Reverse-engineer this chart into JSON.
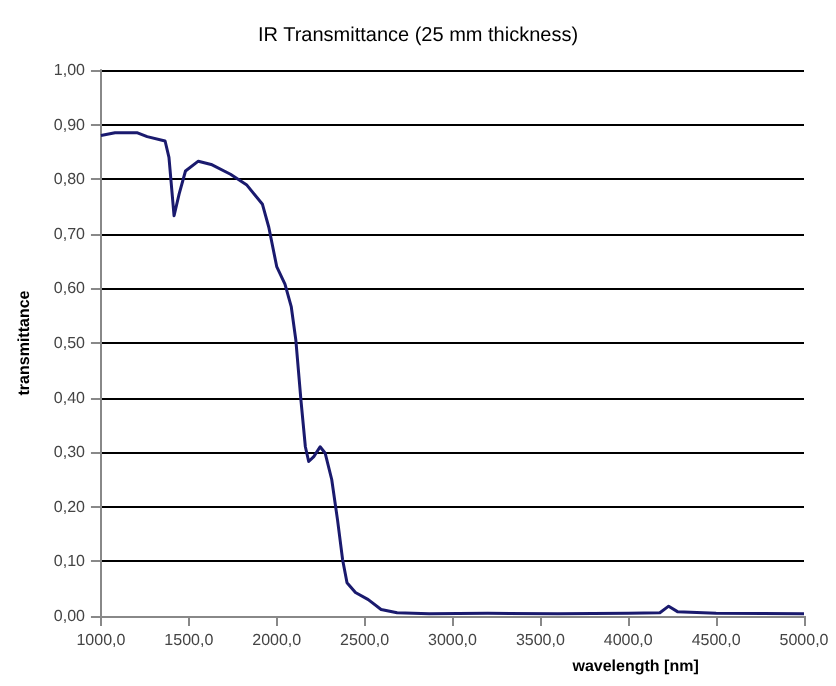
{
  "chart_data": {
    "type": "line",
    "title": "IR Transmittance (25 mm thickness)",
    "xlabel": "wavelength [nm]",
    "ylabel": "transmittance",
    "x": [
      1000,
      1080,
      1208,
      1263,
      1365,
      1387,
      1416,
      1445,
      1481,
      1554,
      1627,
      1737,
      1828,
      1919,
      1955,
      2000,
      2047,
      2083,
      2109,
      2138,
      2163,
      2182,
      2211,
      2247,
      2276,
      2313,
      2346,
      2375,
      2400,
      2448,
      2521,
      2594,
      2685,
      2867,
      3200,
      3600,
      4000,
      4180,
      4230,
      4280,
      4500,
      5000
    ],
    "series": [
      {
        "color": "#1a1a6e",
        "values": [
          0.88,
          0.885,
          0.885,
          0.878,
          0.87,
          0.84,
          0.733,
          0.773,
          0.815,
          0.833,
          0.827,
          0.809,
          0.79,
          0.754,
          0.712,
          0.64,
          0.608,
          0.566,
          0.505,
          0.395,
          0.31,
          0.283,
          0.292,
          0.31,
          0.298,
          0.25,
          0.176,
          0.103,
          0.061,
          0.043,
          0.03,
          0.012,
          0.006,
          0.004,
          0.005,
          0.004,
          0.005,
          0.006,
          0.018,
          0.008,
          0.005,
          0.004
        ]
      }
    ],
    "xlim": [
      1000,
      5000
    ],
    "xticks": [
      {
        "value": 1000,
        "label": "1000,0"
      },
      {
        "value": 1500,
        "label": "1500,0"
      },
      {
        "value": 2000,
        "label": "2000,0"
      },
      {
        "value": 2500,
        "label": "2500,0"
      },
      {
        "value": 3000,
        "label": "3000,0"
      },
      {
        "value": 3500,
        "label": "3500,0"
      },
      {
        "value": 4000,
        "label": "4000,0"
      },
      {
        "value": 4500,
        "label": "4500,0"
      },
      {
        "value": 5000,
        "label": "5000,0"
      }
    ],
    "ylim": [
      0,
      1
    ],
    "yticks": [
      {
        "value": 0,
        "label": "0,00"
      },
      {
        "value": 0.1,
        "label": "0,10"
      },
      {
        "value": 0.2,
        "label": "0,20"
      },
      {
        "value": 0.3,
        "label": "0,30"
      },
      {
        "value": 0.4,
        "label": "0,40"
      },
      {
        "value": 0.5,
        "label": "0,50"
      },
      {
        "value": 0.6,
        "label": "0,60"
      },
      {
        "value": 0.7,
        "label": "0,70"
      },
      {
        "value": 0.8,
        "label": "0,80"
      },
      {
        "value": 0.9,
        "label": "0,90"
      },
      {
        "value": 1,
        "label": "1,00"
      }
    ],
    "grid": "y",
    "marker": "none",
    "line_style": "solid"
  }
}
